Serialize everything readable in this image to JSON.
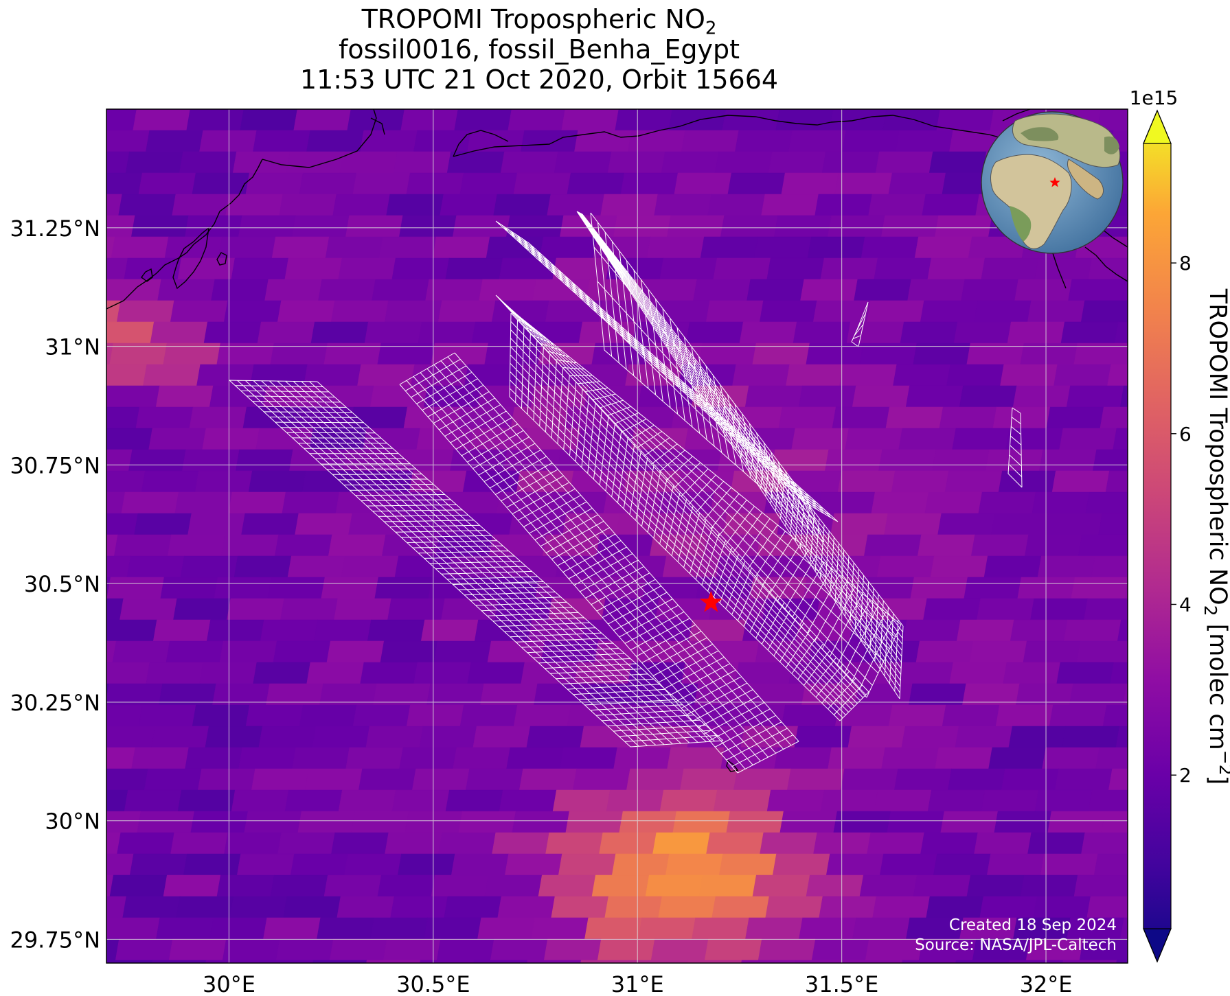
{
  "title": {
    "line1_prefix": "TROPOMI Tropospheric NO",
    "line1_sub": "2",
    "line2": "fossil0016, fossil_Benha_Egypt",
    "line3": "11:53 UTC 21 Oct 2020, Orbit 15664"
  },
  "chart_data": {
    "type": "heatmap",
    "xlim": [
      29.7,
      32.2
    ],
    "ylim": [
      29.7,
      31.5
    ],
    "x_ticks": [
      {
        "value": 30.0,
        "label": "30°E"
      },
      {
        "value": 30.5,
        "label": "30.5°E"
      },
      {
        "value": 31.0,
        "label": "31°E"
      },
      {
        "value": 31.5,
        "label": "31.5°E"
      },
      {
        "value": 32.0,
        "label": "32°E"
      }
    ],
    "y_ticks": [
      {
        "value": 29.75,
        "label": "29.75°N"
      },
      {
        "value": 30.0,
        "label": "30°N"
      },
      {
        "value": 30.25,
        "label": "30.25°N"
      },
      {
        "value": 30.5,
        "label": "30.5°N"
      },
      {
        "value": 30.75,
        "label": "30.75°N"
      },
      {
        "value": 31.0,
        "label": "31°N"
      },
      {
        "value": 31.25,
        "label": "31.25°N"
      }
    ],
    "grid": true,
    "site_marker": {
      "lon": 31.18,
      "lat": 30.46,
      "color": "#ff0000"
    },
    "hotspot": {
      "lon": 31.1,
      "lat": 29.88,
      "value": 7.8
    },
    "colorbar": {
      "label_prefix": "TROPOMI Tropospheric NO",
      "label_sub": "2",
      "label_suffix": " [molec cm",
      "label_sup": "−2",
      "label_end": "]",
      "exponent": "1e15",
      "min": 0.2,
      "max": 9.4,
      "ticks": [
        2,
        4,
        6,
        8
      ],
      "colormap": "plasma"
    },
    "credits": {
      "line1": "Created 18 Sep 2024",
      "line2": "Source: NASA/JPL-Caltech"
    }
  }
}
